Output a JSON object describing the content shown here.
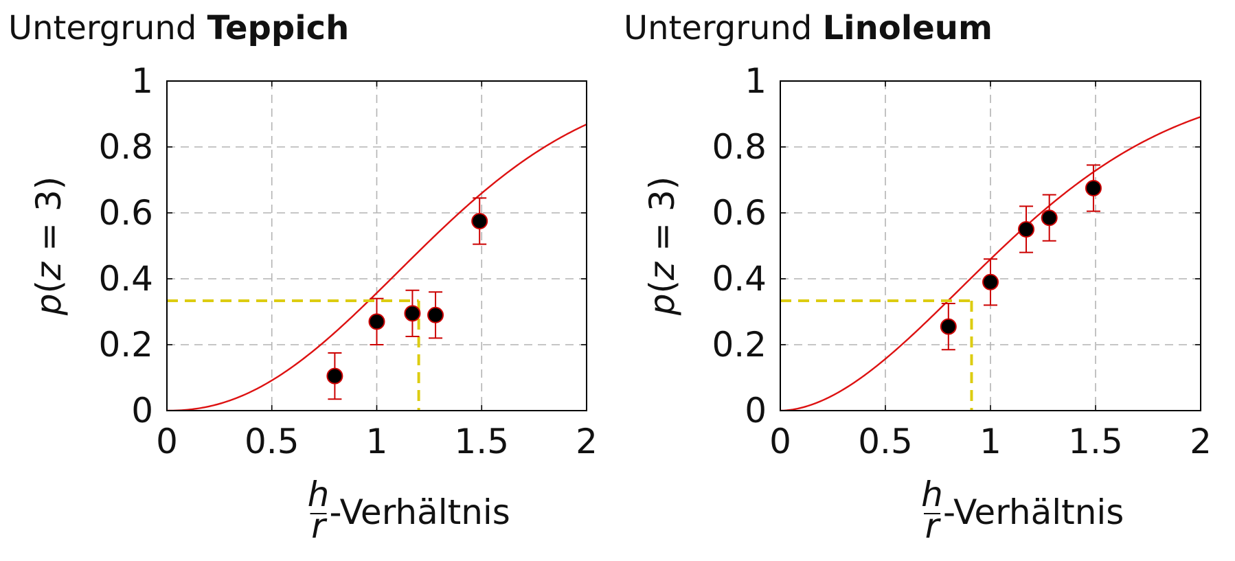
{
  "chart_data": [
    {
      "type": "scatter",
      "title_prefix": "Untergrund",
      "title_bold": "Teppich",
      "xlabel_num": "h",
      "xlabel_den": "r",
      "xlabel_suffix": "-Verhältnis",
      "ylabel_p": "p",
      "ylabel_open": "(",
      "ylabel_z": "z",
      "ylabel_rest": " = 3)",
      "xlim": [
        0,
        2
      ],
      "ylim": [
        0,
        1
      ],
      "xticks": [
        0,
        0.5,
        1,
        1.5,
        2
      ],
      "xtick_labels": [
        "0",
        "0.5",
        "1",
        "1.5",
        "2"
      ],
      "yticks": [
        0,
        0.2,
        0.4,
        0.6,
        0.8,
        1
      ],
      "ytick_labels": [
        "0",
        "0.2",
        "0.4",
        "0.6",
        "0.8",
        "1"
      ],
      "grid": true,
      "points": [
        {
          "x": 0.8,
          "y": 0.105,
          "err": 0.07
        },
        {
          "x": 1.0,
          "y": 0.27,
          "err": 0.07
        },
        {
          "x": 1.17,
          "y": 0.295,
          "err": 0.07
        },
        {
          "x": 1.28,
          "y": 0.29,
          "err": 0.07
        },
        {
          "x": 1.49,
          "y": 0.575,
          "err": 0.07
        }
      ],
      "fit_curve": {
        "model": "1 - exp(-(x/lambda)^k)",
        "lambda": 1.45,
        "k": 2.2
      },
      "threshold": {
        "x": 1.2,
        "y": 0.3333
      },
      "colors": {
        "points": "#000000",
        "point_edge": "#cc0000",
        "fit": "#dd1111",
        "errorbar": "#cc0000",
        "threshold": "#ddcc11",
        "grid": "#b3b3b3"
      }
    },
    {
      "type": "scatter",
      "title_prefix": "Untergrund",
      "title_bold": "Linoleum",
      "xlabel_num": "h",
      "xlabel_den": "r",
      "xlabel_suffix": "-Verhältnis",
      "ylabel_p": "p",
      "ylabel_open": "(",
      "ylabel_z": "z",
      "ylabel_rest": " = 3)",
      "xlim": [
        0,
        2
      ],
      "ylim": [
        0,
        1
      ],
      "xticks": [
        0,
        0.5,
        1,
        1.5,
        2
      ],
      "xtick_labels": [
        "0",
        "0.5",
        "1",
        "1.5",
        "2"
      ],
      "yticks": [
        0,
        0.2,
        0.4,
        0.6,
        0.8,
        1
      ],
      "ytick_labels": [
        "0",
        "0.2",
        "0.4",
        "0.6",
        "0.8",
        "1"
      ],
      "grid": true,
      "points": [
        {
          "x": 0.8,
          "y": 0.255,
          "err": 0.07
        },
        {
          "x": 1.0,
          "y": 0.39,
          "err": 0.07
        },
        {
          "x": 1.17,
          "y": 0.55,
          "err": 0.07
        },
        {
          "x": 1.28,
          "y": 0.585,
          "err": 0.07
        },
        {
          "x": 1.49,
          "y": 0.675,
          "err": 0.07
        }
      ],
      "fit_curve": {
        "model": "1 - exp(-(x/lambda)^k)",
        "lambda": 1.3,
        "k": 1.85
      },
      "threshold": {
        "x": 0.91,
        "y": 0.3333
      },
      "colors": {
        "points": "#000000",
        "point_edge": "#cc0000",
        "fit": "#dd1111",
        "errorbar": "#cc0000",
        "threshold": "#ddcc11",
        "grid": "#b3b3b3"
      }
    }
  ]
}
